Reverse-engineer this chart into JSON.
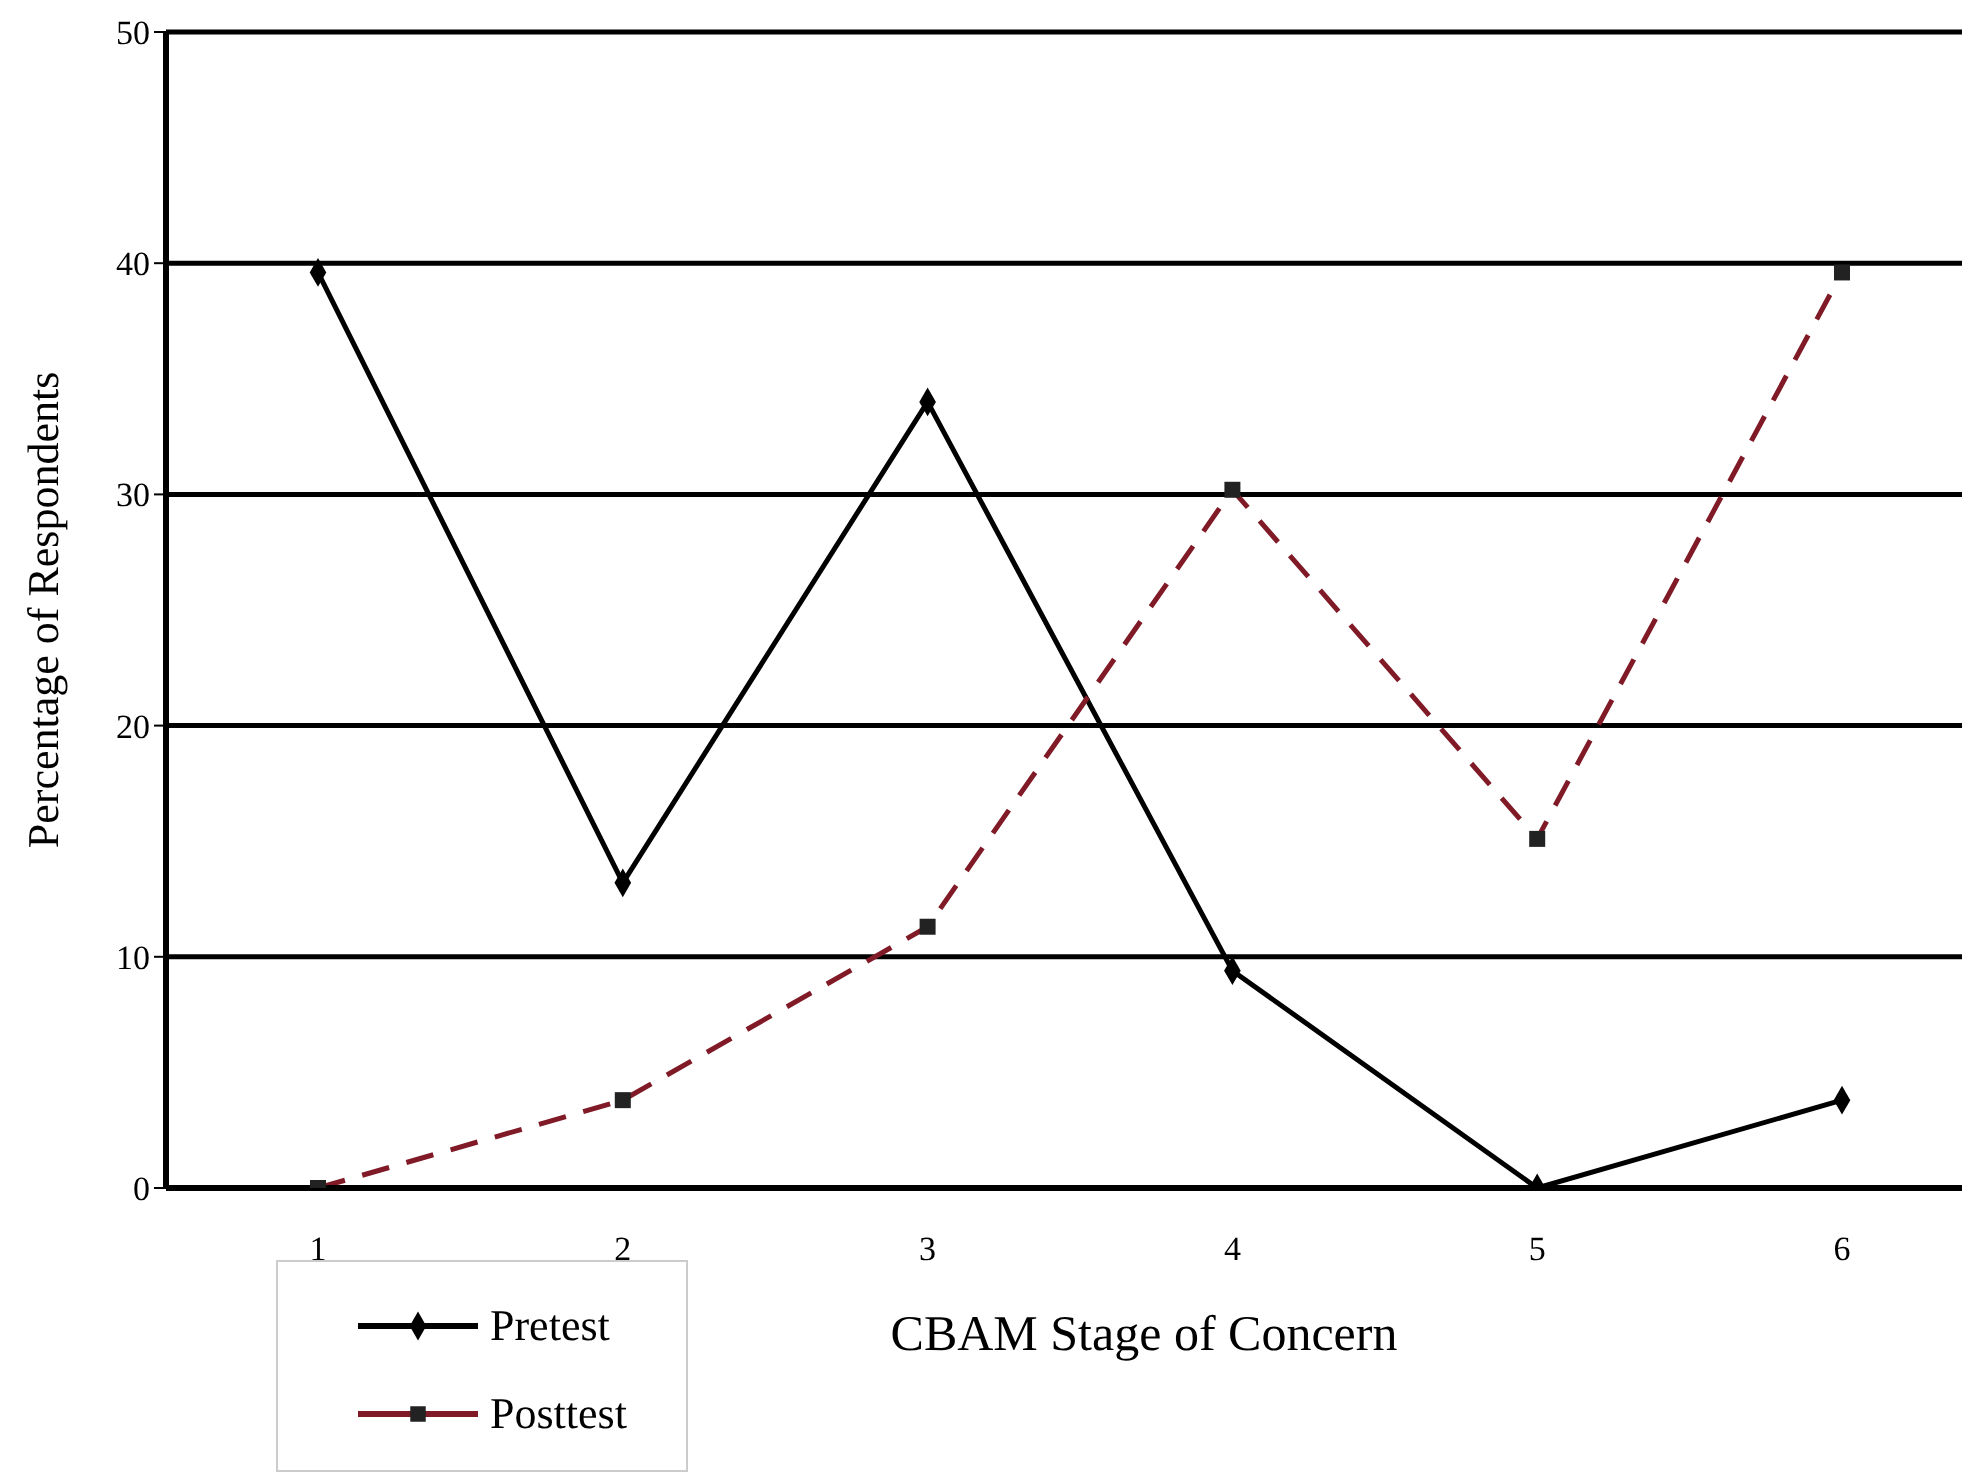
{
  "chart_data": {
    "type": "line",
    "xlabel": "CBAM Stage of Concern",
    "ylabel": "Percentage of Respondents",
    "categories": [
      "1",
      "2",
      "3",
      "4",
      "5",
      "6"
    ],
    "series": [
      {
        "name": "Pretest",
        "color": "#000000",
        "values": [
          39.6,
          13.2,
          34.0,
          9.4,
          0,
          3.8
        ],
        "marker": "diamond",
        "line_style": "solid"
      },
      {
        "name": "Posttest",
        "color": "#7f1a26",
        "values": [
          0,
          3.8,
          11.3,
          30.2,
          15.1,
          39.6
        ],
        "marker": "square",
        "line_style": "dashed"
      }
    ],
    "ylim": [
      0,
      50
    ],
    "yticks": [
      0,
      10,
      20,
      30,
      40,
      50
    ],
    "grid": "y",
    "legend": "bottom left"
  }
}
